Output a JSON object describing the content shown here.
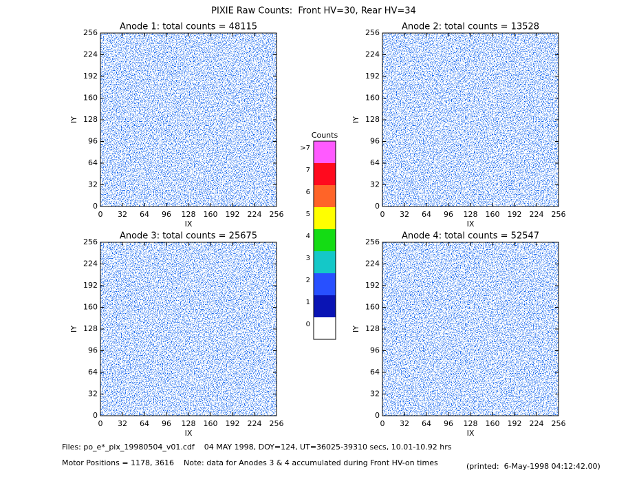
{
  "title": "PIXIE Raw Counts:  Front HV=30, Rear HV=34",
  "chart_data": [
    {
      "type": "heatmap",
      "title": "Anode 1: total counts = 48115",
      "xlabel": "IX",
      "ylabel": "IY",
      "xlim": [
        0,
        256
      ],
      "ylim": [
        0,
        256
      ],
      "xticks": [
        0,
        32,
        64,
        96,
        128,
        160,
        192,
        224,
        256
      ],
      "yticks": [
        0,
        32,
        64,
        96,
        128,
        160,
        192,
        224,
        256
      ]
    },
    {
      "type": "heatmap",
      "title": "Anode 2: total counts = 13528",
      "xlabel": "IX",
      "ylabel": "IY",
      "xlim": [
        0,
        256
      ],
      "ylim": [
        0,
        256
      ],
      "xticks": [
        0,
        32,
        64,
        96,
        128,
        160,
        192,
        224,
        256
      ],
      "yticks": [
        0,
        32,
        64,
        96,
        128,
        160,
        192,
        224,
        256
      ]
    },
    {
      "type": "heatmap",
      "title": "Anode 3: total counts = 25675",
      "xlabel": "IX",
      "ylabel": "IY",
      "xlim": [
        0,
        256
      ],
      "ylim": [
        0,
        256
      ],
      "xticks": [
        0,
        32,
        64,
        96,
        128,
        160,
        192,
        224,
        256
      ],
      "yticks": [
        0,
        32,
        64,
        96,
        128,
        160,
        192,
        224,
        256
      ]
    },
    {
      "type": "heatmap",
      "title": "Anode 4: total counts = 52547",
      "xlabel": "IX",
      "ylabel": "IY",
      "xlim": [
        0,
        256
      ],
      "ylim": [
        0,
        256
      ],
      "xticks": [
        0,
        32,
        64,
        96,
        128,
        160,
        192,
        224,
        256
      ],
      "yticks": [
        0,
        32,
        64,
        96,
        128,
        160,
        192,
        224,
        256
      ]
    }
  ],
  "colorbar": {
    "title": "Counts",
    "ticks": [
      0,
      1,
      2,
      3,
      4,
      5,
      6,
      7,
      {
        "value": 8,
        "label": ">7"
      }
    ],
    "colors": [
      "#ffffff",
      "#0a14b4",
      "#2850ff",
      "#14c8c8",
      "#14dc14",
      "#ffff00",
      "#ff6428",
      "#ff0a1e",
      "#ff5aff"
    ]
  },
  "footer": {
    "files": "Files: po_e*_pix_19980504_v01.cdf    04 MAY 1998, DOY=124, UT=36025-39310 secs, 10.01-10.92 hrs",
    "motor": "Motor Positions = 1178, 3616    Note: data for Anodes 3 & 4 accumulated during Front HV-on times",
    "printed": "(printed:  6-May-1998 04:12:42.00)"
  }
}
